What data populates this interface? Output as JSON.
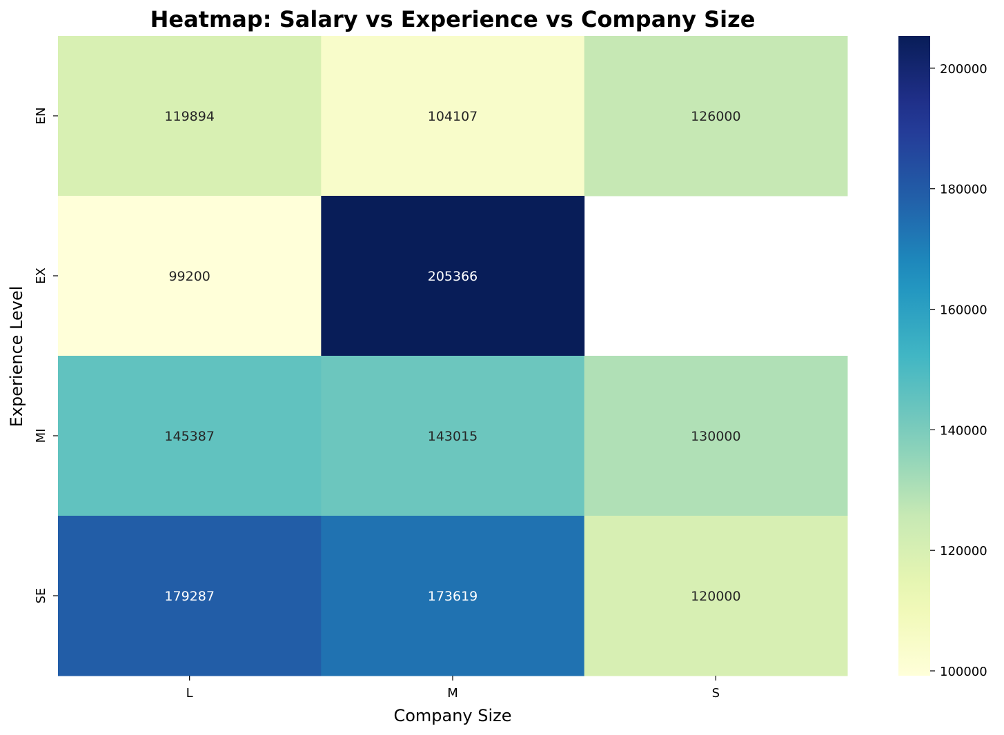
{
  "chart_data": {
    "type": "heatmap",
    "title": "Heatmap: Salary vs Experience vs Company Size",
    "xlabel": "Company Size",
    "ylabel": "Experience Level",
    "x_categories": [
      "L",
      "M",
      "S"
    ],
    "y_categories": [
      "EN",
      "EX",
      "MI",
      "SE"
    ],
    "values": [
      [
        119894,
        104107,
        126000
      ],
      [
        99200,
        205366,
        null
      ],
      [
        145387,
        143015,
        130000
      ],
      [
        179287,
        173619,
        120000
      ]
    ],
    "colormap": "YlGnBu",
    "vmin": 99200,
    "vmax": 205366,
    "colorbar": {
      "ticks": [
        100000,
        120000,
        140000,
        160000,
        180000,
        200000
      ],
      "tick_labels": [
        "100000",
        "120000",
        "140000",
        "160000",
        "180000",
        "200000"
      ]
    },
    "annotations": true
  }
}
